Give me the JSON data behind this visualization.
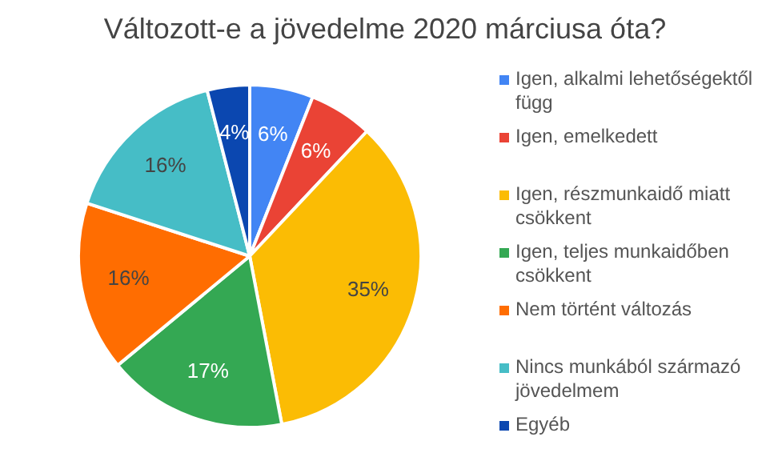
{
  "chart_data": {
    "type": "pie",
    "title": "Változott-e a jövedelme 2020 márciusa óta?",
    "categories": [
      "Igen, alkalmi lehetőségektől függ",
      "Igen, emelkedett",
      "Igen, részmunkaidő miatt csökkent",
      "Igen, teljes munkaidőben csökkent",
      "Nem történt változás",
      "Nincs munkából származó jövedelmem",
      "Egyéb"
    ],
    "values": [
      6,
      6,
      35,
      17,
      16,
      16,
      4
    ],
    "value_labels": [
      "6%",
      "6%",
      "35%",
      "17%",
      "16%",
      "16%",
      "4%"
    ],
    "colors": [
      "#4285f4",
      "#ea4335",
      "#fbbc04",
      "#34a853",
      "#ff6d01",
      "#46bdc6",
      "#0b47b0"
    ],
    "legend": "right"
  }
}
